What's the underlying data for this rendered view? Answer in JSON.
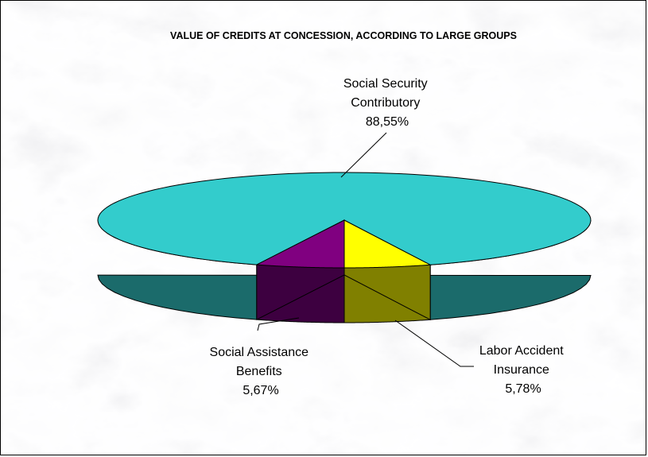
{
  "chart_data": {
    "type": "pie",
    "style": "3d",
    "title": "VALUE OF CREDITS AT CONCESSION, ACCORDING TO LARGE GROUPS",
    "slices": [
      {
        "label_lines": [
          "Social Security",
          "Contributory"
        ],
        "value": 88.55,
        "value_label": "88,55%",
        "color": "#33cccc",
        "side_color": "#1b6b6b"
      },
      {
        "label_lines": [
          "Labor Accident",
          "Insurance"
        ],
        "value": 5.78,
        "value_label": "5,78%",
        "color": "#800080",
        "side_color": "#3d0040"
      },
      {
        "label_lines": [
          "Social Assistance",
          "Benefits"
        ],
        "value": 5.67,
        "value_label": "5,67%",
        "color": "#ffff00",
        "side_color": "#808000"
      }
    ],
    "legend": "none",
    "background": "marble texture"
  }
}
